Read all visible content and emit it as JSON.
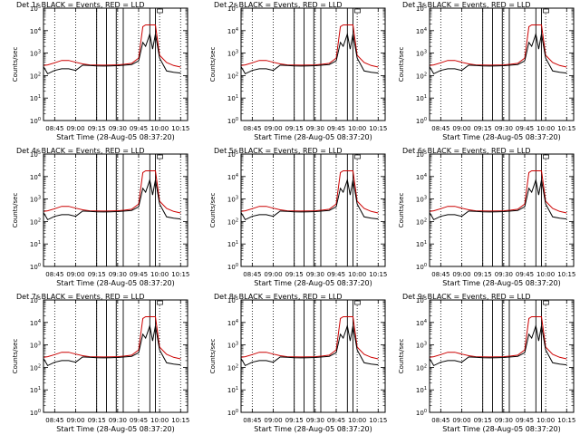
{
  "figure": {
    "panel_titles": [
      "Det 1r BLACK = Events, RED = LLD",
      "Det 2r BLACK = Events, RED = LLD",
      "Det 3r BLACK = Events, RED = LLD",
      "Det 4r BLACK = Events, RED = LLD",
      "Det 5r BLACK = Events, RED = LLD",
      "Det 6r BLACK = Events, RED = LLD",
      "Det 7r BLACK = Events, RED = LLD",
      "Det 8r BLACK = Events, RED = LLD",
      "Det 9r BLACK = Events, RED = LLD"
    ],
    "xlabel": "Start Time (28-Aug-05 08:37:20)",
    "ylabel": "Counts/sec",
    "colors": {
      "events": "#000000",
      "lld": "#cc0000",
      "frame": "#000000"
    }
  },
  "chart_data": {
    "type": "line",
    "layout": "3x3 grid",
    "xlabel": "Start Time (28-Aug-05 08:37:20)",
    "ylabel": "Counts/sec",
    "yscale": "log",
    "ylim": [
      1,
      100000
    ],
    "y_ticks": [
      "10^0",
      "10^1",
      "10^2",
      "10^3",
      "10^4",
      "10^5"
    ],
    "x_range": [
      "08:37",
      "10:20"
    ],
    "x_ticks": [
      "08:45",
      "09:00",
      "09:15",
      "09:30",
      "09:45",
      "10:00",
      "10:15"
    ],
    "vertical_markers": [
      "09:15",
      "09:22",
      "09:29",
      "09:34",
      "09:53",
      "09:57"
    ],
    "time_axis": [
      "08:37",
      "08:40",
      "08:45",
      "08:50",
      "08:55",
      "09:00",
      "09:05",
      "09:10",
      "09:15",
      "09:20",
      "09:25",
      "09:30",
      "09:35",
      "09:40",
      "09:45",
      "09:48",
      "09:50",
      "09:53",
      "09:55",
      "09:57",
      "10:00",
      "10:05",
      "10:10",
      "10:15"
    ],
    "series": [
      {
        "name": "LLD",
        "color": "red",
        "values": [
          280,
          300,
          370,
          470,
          470,
          390,
          330,
          300,
          295,
          290,
          295,
          300,
          320,
          350,
          600,
          15000,
          18000,
          18000,
          18000,
          18000,
          800,
          380,
          280,
          240
        ]
      },
      {
        "name": "Events",
        "color": "black",
        "values": [
          250,
          120,
          170,
          200,
          200,
          170,
          290,
          280,
          270,
          265,
          270,
          275,
          290,
          310,
          450,
          3000,
          2000,
          7000,
          1500,
          7000,
          600,
          160,
          140,
          130
        ]
      }
    ]
  }
}
